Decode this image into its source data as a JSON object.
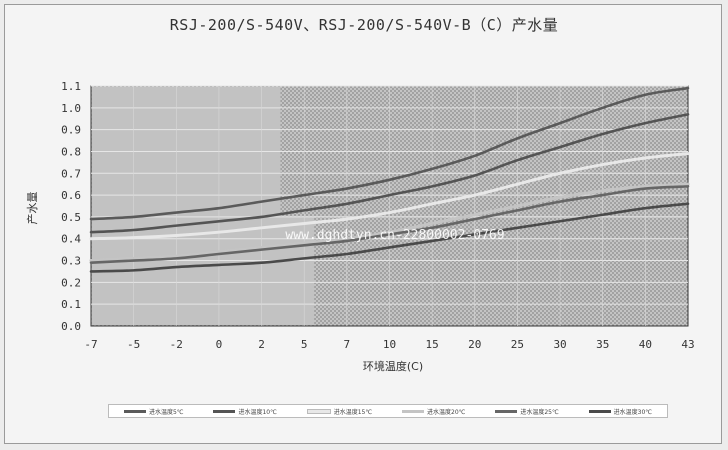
{
  "chart_data": {
    "type": "line",
    "title": "RSJ-200/S-540V、RSJ-200/S-540V-B（C）产水量",
    "xlabel": "环境温度(C)",
    "ylabel": "产水量",
    "x": [
      -7,
      -5,
      -2,
      0,
      2,
      5,
      7,
      10,
      15,
      20,
      25,
      30,
      35,
      40,
      43
    ],
    "xlim": [
      -7,
      43
    ],
    "ylim": [
      0,
      1.1
    ],
    "yticks": [
      "0.0",
      "0.1",
      "0.2",
      "0.3",
      "0.4",
      "0.5",
      "0.6",
      "0.7",
      "0.8",
      "0.9",
      "1.0",
      "1.1"
    ],
    "grid": true,
    "legend_position": "bottom",
    "watermark": "www.dghdtyn.cn-22800002-0769",
    "series": [
      {
        "name": "进水温度5℃",
        "color": "#5a5a5a",
        "values": [
          0.49,
          0.5,
          0.52,
          0.54,
          0.57,
          0.6,
          0.63,
          0.67,
          0.72,
          0.78,
          0.86,
          0.93,
          1.0,
          1.06,
          1.09
        ]
      },
      {
        "name": "进水温度10℃",
        "color": "#545454",
        "values": [
          0.43,
          0.44,
          0.46,
          0.48,
          0.5,
          0.53,
          0.56,
          0.6,
          0.64,
          0.69,
          0.76,
          0.82,
          0.88,
          0.93,
          0.97
        ]
      },
      {
        "name": "进水温度15℃",
        "color": "#e8e8e8",
        "values": [
          0.4,
          0.405,
          0.415,
          0.43,
          0.45,
          0.47,
          0.49,
          0.52,
          0.56,
          0.6,
          0.65,
          0.7,
          0.74,
          0.77,
          0.79
        ]
      },
      {
        "name": "进水温度20℃",
        "color": "#c4c4c4",
        "values": [
          0.3,
          0.31,
          0.32,
          0.34,
          0.36,
          0.38,
          0.4,
          0.43,
          0.47,
          0.51,
          0.55,
          0.59,
          0.62,
          0.64,
          0.65
        ]
      },
      {
        "name": "进水温度25℃",
        "color": "#666666",
        "values": [
          0.29,
          0.3,
          0.31,
          0.33,
          0.35,
          0.37,
          0.39,
          0.42,
          0.45,
          0.49,
          0.53,
          0.57,
          0.6,
          0.63,
          0.64
        ]
      },
      {
        "name": "进水温度30℃",
        "color": "#4a4a4a",
        "values": [
          0.25,
          0.255,
          0.27,
          0.28,
          0.29,
          0.31,
          0.33,
          0.36,
          0.39,
          0.42,
          0.45,
          0.48,
          0.51,
          0.54,
          0.56
        ]
      }
    ]
  }
}
